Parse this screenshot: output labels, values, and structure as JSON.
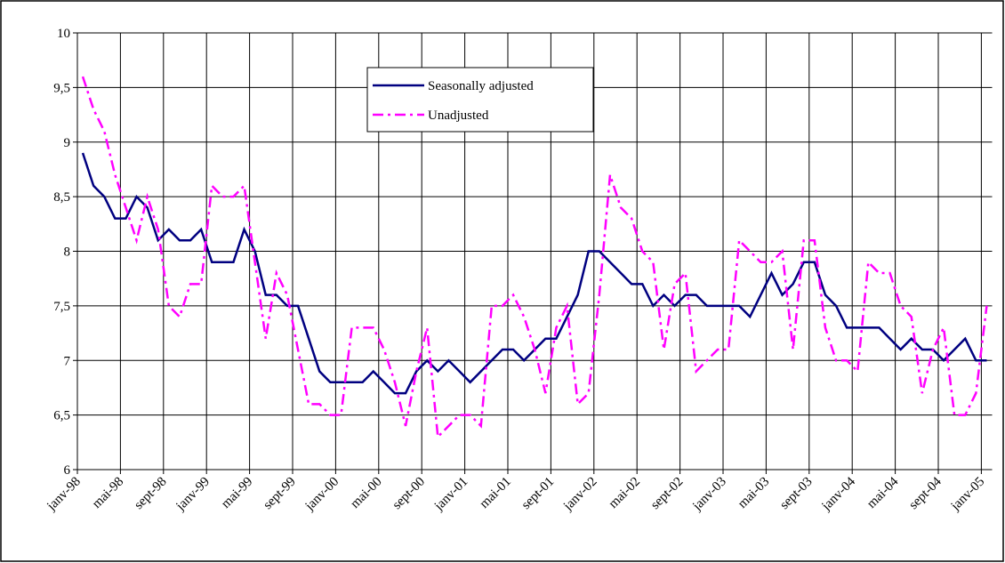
{
  "chart_data": {
    "type": "line",
    "categories": [
      "janv-98",
      null,
      null,
      null,
      "mai-98",
      null,
      null,
      null,
      "sept-98",
      null,
      null,
      null,
      "janv-99",
      null,
      null,
      null,
      "mai-99",
      null,
      null,
      null,
      "sept-99",
      null,
      null,
      null,
      "janv-00",
      null,
      null,
      null,
      "mai-00",
      null,
      null,
      null,
      "sept-00",
      null,
      null,
      null,
      "janv-01",
      null,
      null,
      null,
      "mai-01",
      null,
      null,
      null,
      "sept-01",
      null,
      null,
      null,
      "janv-02",
      null,
      null,
      null,
      "mai-02",
      null,
      null,
      null,
      "sept-02",
      null,
      null,
      null,
      "janv-03",
      null,
      null,
      null,
      "mai-03",
      null,
      null,
      null,
      "sept-03",
      null,
      null,
      null,
      "janv-04",
      null,
      null,
      null,
      "mai-04",
      null,
      null,
      null,
      "sept-04",
      null,
      null,
      null,
      "janv-05"
    ],
    "series": [
      {
        "name": "Seasonally adjusted",
        "color": "#000080",
        "dash": "none",
        "values": [
          8.9,
          8.6,
          8.5,
          8.3,
          8.3,
          8.5,
          8.4,
          8.1,
          8.2,
          8.1,
          8.1,
          8.2,
          7.9,
          7.9,
          7.9,
          8.2,
          8.0,
          7.6,
          7.6,
          7.5,
          7.5,
          7.2,
          6.9,
          6.8,
          6.8,
          6.8,
          6.8,
          6.9,
          6.8,
          6.7,
          6.7,
          6.9,
          7.0,
          6.9,
          7.0,
          6.9,
          6.8,
          6.9,
          7.0,
          7.1,
          7.1,
          7.0,
          7.1,
          7.2,
          7.2,
          7.4,
          7.6,
          8.0,
          8.0,
          7.9,
          7.8,
          7.7,
          7.7,
          7.5,
          7.6,
          7.5,
          7.6,
          7.6,
          7.5,
          7.5,
          7.5,
          7.5,
          7.4,
          7.6,
          7.8,
          7.6,
          7.7,
          7.9,
          7.9,
          7.6,
          7.5,
          7.3,
          7.3,
          7.3,
          7.3,
          7.2,
          7.1,
          7.2,
          7.1,
          7.1,
          7.0,
          7.1,
          7.2,
          7.0,
          7.0
        ]
      },
      {
        "name": "Unadjusted",
        "color": "#ff00ff",
        "dash": "12 5 3 5",
        "values": [
          9.6,
          9.3,
          9.1,
          8.7,
          8.4,
          8.1,
          8.5,
          8.2,
          7.5,
          7.4,
          7.7,
          7.7,
          8.6,
          8.5,
          8.5,
          8.6,
          7.9,
          7.2,
          7.8,
          7.6,
          7.1,
          6.6,
          6.6,
          6.5,
          6.5,
          7.3,
          7.3,
          7.3,
          7.1,
          6.8,
          6.4,
          6.9,
          7.3,
          6.3,
          6.4,
          6.5,
          6.5,
          6.4,
          7.5,
          7.5,
          7.6,
          7.4,
          7.1,
          6.7,
          7.3,
          7.5,
          6.6,
          6.7,
          7.6,
          8.7,
          8.4,
          8.3,
          8.0,
          7.9,
          7.1,
          7.7,
          7.8,
          6.9,
          7.0,
          7.1,
          7.1,
          8.1,
          8.0,
          7.9,
          7.9,
          8.0,
          7.1,
          8.1,
          8.1,
          7.3,
          7.0,
          7.0,
          6.9,
          7.9,
          7.8,
          7.8,
          7.5,
          7.4,
          6.7,
          7.1,
          7.3,
          6.5,
          6.5,
          6.7,
          7.5
        ]
      }
    ],
    "ylim": [
      6,
      10
    ],
    "yticks": [
      6,
      {
        "value": 6.5,
        "label": "6,5"
      },
      7,
      {
        "value": 7.5,
        "label": "7,5"
      },
      8,
      {
        "value": 8.5,
        "label": "8,5"
      },
      9,
      {
        "value": 9.5,
        "label": "9,5"
      },
      10
    ],
    "grid": true
  }
}
